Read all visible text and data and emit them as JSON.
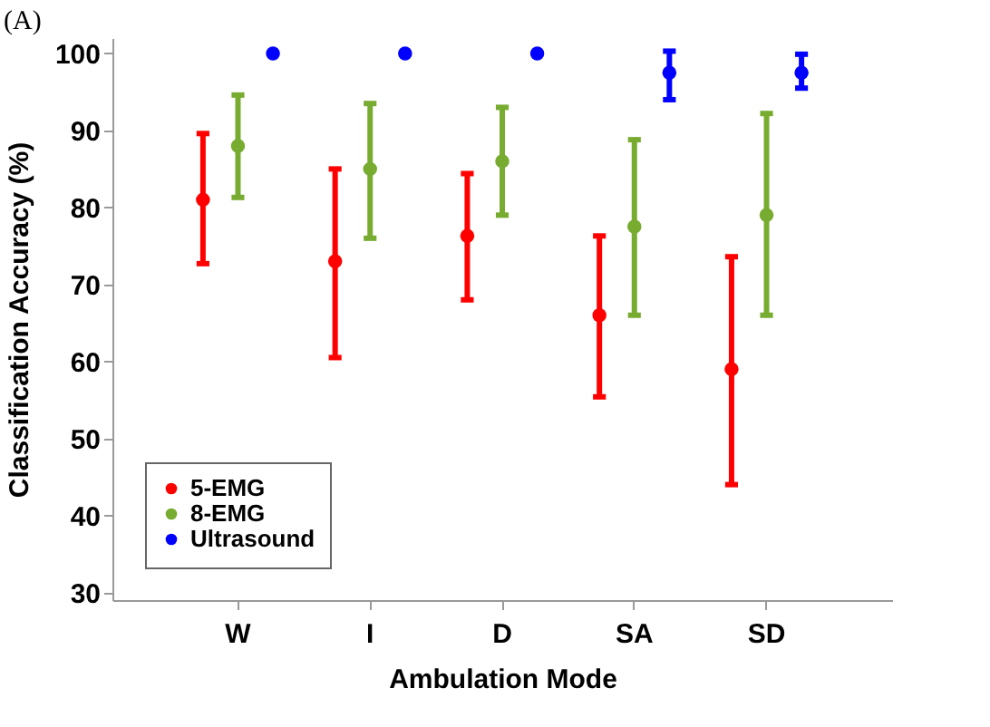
{
  "chart_data": {
    "type": "scatter",
    "title": "(A)",
    "xlabel": "Ambulation Mode",
    "ylabel": "Classification Accuracy (%)",
    "categories": [
      "W",
      "I",
      "D",
      "SA",
      "SD"
    ],
    "series": [
      {
        "name": "5-EMG",
        "color": "#ff0000",
        "values": [
          81,
          73,
          76.3,
          66,
          59
        ],
        "errors": [
          [
            72.7,
            89.6
          ],
          [
            60.5,
            85
          ],
          [
            68,
            84.4
          ],
          [
            55.4,
            76.3
          ],
          [
            44,
            73.6
          ]
        ]
      },
      {
        "name": "8-EMG",
        "color": "#77ac30",
        "values": [
          88,
          85,
          86,
          77.5,
          79
        ],
        "errors": [
          [
            81.3,
            94.6
          ],
          [
            76,
            93.5
          ],
          [
            79,
            93
          ],
          [
            66,
            88.8
          ],
          [
            66,
            92.2
          ]
        ]
      },
      {
        "name": "Ultrasound",
        "color": "#0000ff",
        "values": [
          100,
          100,
          100,
          97.5,
          97.5
        ],
        "errors": [
          null,
          null,
          null,
          [
            94,
            100.3
          ],
          [
            95.5,
            99.9
          ]
        ]
      }
    ],
    "ylim": [
      29,
      102
    ],
    "yticks": [
      30,
      40,
      50,
      60,
      70,
      80,
      90,
      100
    ],
    "grid": false,
    "legend": "bottom left",
    "marker": "circle"
  }
}
